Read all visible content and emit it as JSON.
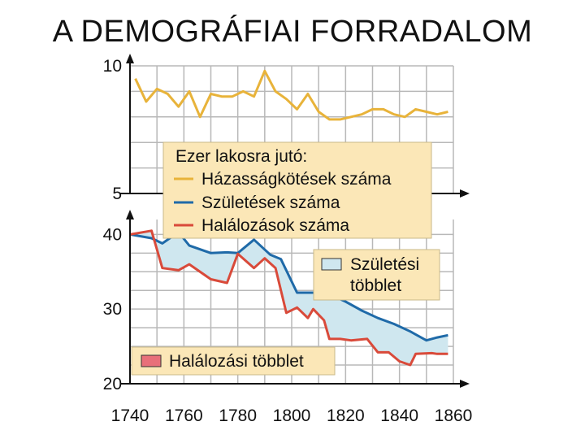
{
  "title": "A DEMOGRÁFIAI FORRADALOM",
  "chart_data": [
    {
      "type": "line",
      "panel": "top",
      "ylim": [
        5,
        10
      ],
      "y_ticks": [
        10,
        5
      ],
      "x": [
        1742,
        1746,
        1750,
        1754,
        1758,
        1762,
        1766,
        1770,
        1774,
        1778,
        1782,
        1786,
        1790,
        1794,
        1798,
        1802,
        1806,
        1810,
        1814,
        1818,
        1822,
        1826,
        1830,
        1834,
        1838,
        1842,
        1846,
        1850,
        1854,
        1858
      ],
      "series": [
        {
          "name": "Házasságkötések száma",
          "color": "#e8b33a",
          "values": [
            9.5,
            8.6,
            9.1,
            8.9,
            8.4,
            9.0,
            8.0,
            8.9,
            8.8,
            8.8,
            9.0,
            8.8,
            9.8,
            9.0,
            8.7,
            8.3,
            8.9,
            8.2,
            7.9,
            7.9,
            8.0,
            8.1,
            8.3,
            8.3,
            8.1,
            8.0,
            8.3,
            8.2,
            8.1,
            8.2
          ]
        }
      ],
      "legend": {
        "title": "Ezer lakosra jutó:",
        "placement": "bottom-left",
        "entries": [
          {
            "label": "Házasságkötések száma",
            "color": "#e8b33a"
          },
          {
            "label": "Születések száma",
            "color": "#1f6aa8"
          },
          {
            "label": "Halálozások száma",
            "color": "#d94a3a"
          }
        ]
      }
    },
    {
      "type": "area",
      "panel": "bottom",
      "ylim": [
        20,
        42
      ],
      "y_ticks": [
        40,
        30,
        20
      ],
      "x_ticks": [
        "1740",
        "1760",
        "1780",
        "1800",
        "1820",
        "1840",
        "1860"
      ],
      "x_range": [
        1740,
        1860
      ],
      "series": [
        {
          "name": "Születések száma",
          "color": "#1f6aa8",
          "x": [
            1740,
            1748,
            1752,
            1758,
            1762,
            1770,
            1776,
            1780,
            1786,
            1792,
            1796,
            1802,
            1808,
            1814,
            1820,
            1826,
            1832,
            1838,
            1844,
            1850,
            1854,
            1858
          ],
          "values": [
            40,
            39.5,
            38.8,
            40.3,
            38.5,
            37.5,
            37.6,
            37.5,
            39.3,
            37.3,
            36.7,
            32.2,
            32.2,
            32.0,
            31.0,
            29.8,
            28.8,
            28.0,
            27.0,
            25.8,
            26.2,
            26.5
          ]
        },
        {
          "name": "Halálozások száma",
          "color": "#d94a3a",
          "x": [
            1740,
            1748,
            1752,
            1758,
            1762,
            1770,
            1776,
            1780,
            1786,
            1790,
            1794,
            1798,
            1802,
            1806,
            1808,
            1812,
            1814,
            1818,
            1822,
            1828,
            1832,
            1836,
            1840,
            1844,
            1846,
            1852,
            1854,
            1858
          ],
          "values": [
            40,
            40.5,
            35.5,
            35.2,
            36.0,
            34.0,
            33.5,
            37.4,
            35.5,
            36.8,
            35.5,
            29.5,
            30.2,
            28.8,
            30.0,
            28.5,
            26.0,
            26.0,
            25.8,
            26.0,
            24.2,
            24.2,
            23.0,
            22.5,
            24.0,
            24.1,
            24.0,
            24.0
          ]
        }
      ],
      "annotations": [
        {
          "label_line1": "Születési",
          "label_line2": "többlet",
          "fill": "#cfe7ef"
        },
        {
          "label": "Halálozási többlet",
          "fill": "#e8707a"
        }
      ]
    }
  ]
}
